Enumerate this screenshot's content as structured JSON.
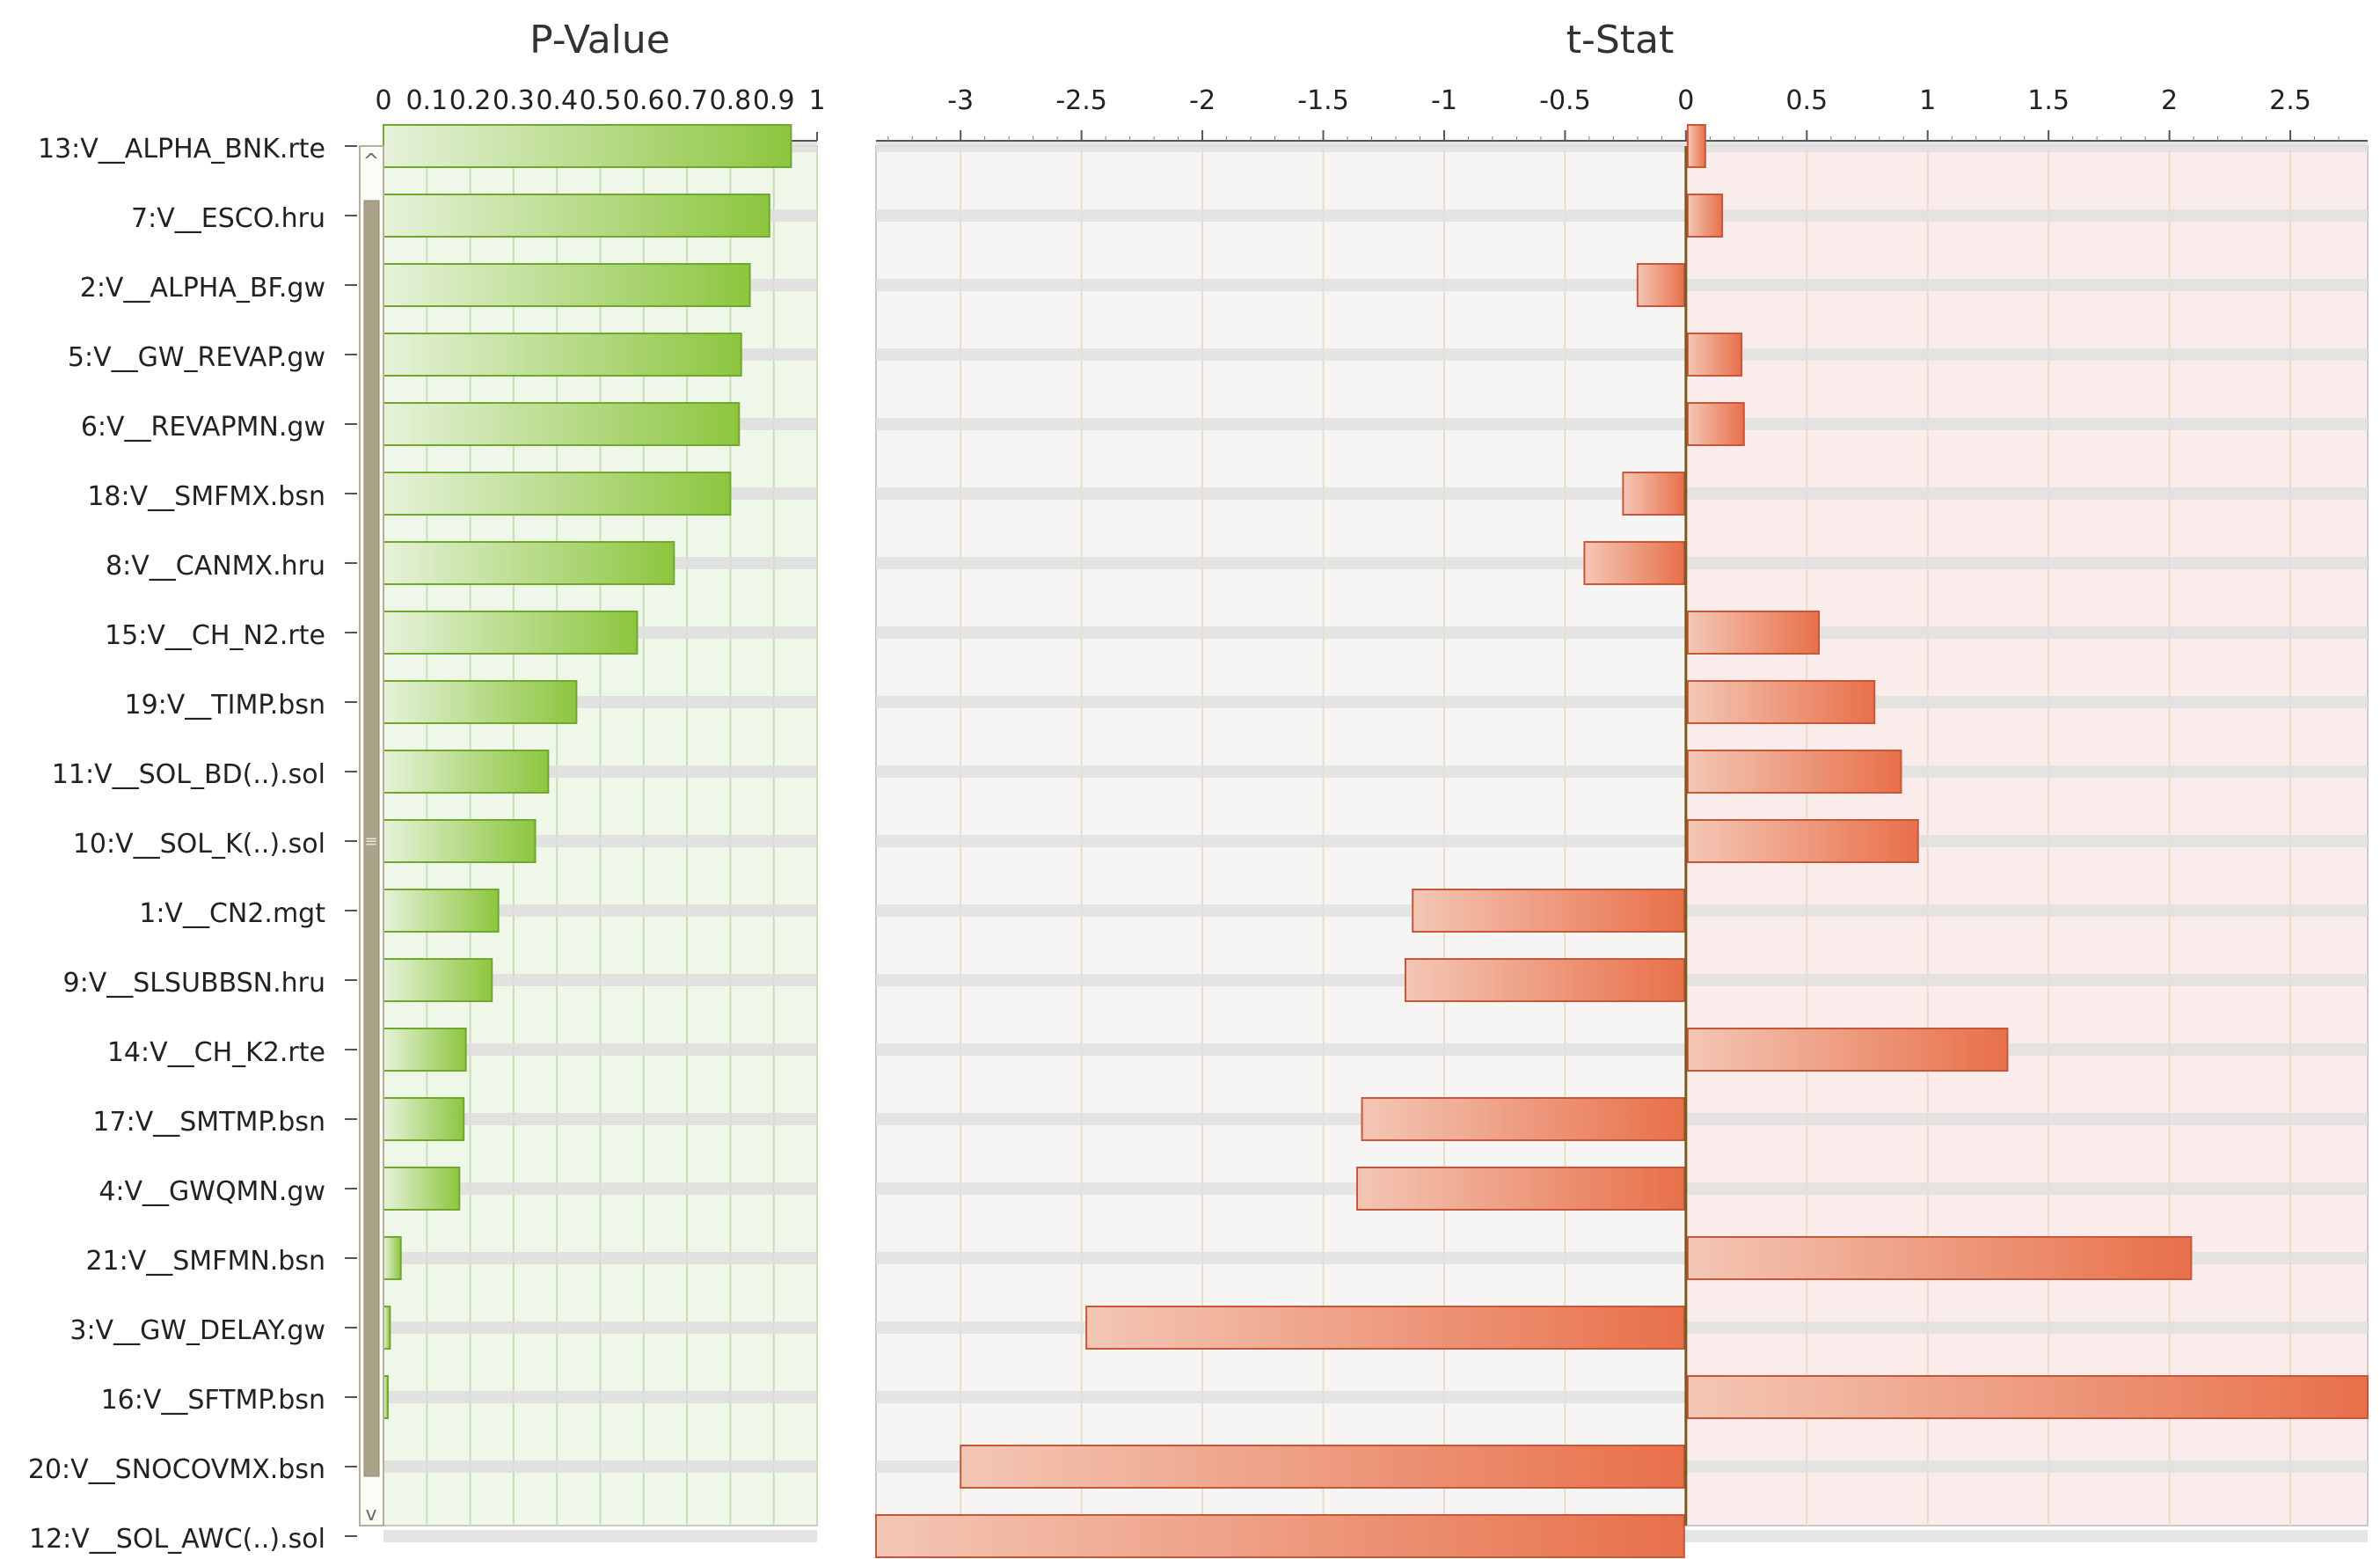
{
  "chart_data": [
    {
      "type": "bar",
      "orientation": "horizontal",
      "title": "P-Value",
      "xlim": [
        0,
        1
      ],
      "ticks": [
        0,
        0.1,
        0.2,
        0.3,
        0.4,
        0.5,
        0.6,
        0.7,
        0.8,
        0.9,
        1
      ],
      "tick_labels": [
        "0",
        "0.1",
        "0.2",
        "0.3",
        "0.4",
        "0.5",
        "0.6",
        "0.7",
        "0.8",
        "0.9",
        "1"
      ],
      "categories": [
        "13:V__ALPHA_BNK.rte",
        "7:V__ESCO.hru",
        "2:V__ALPHA_BF.gw",
        "5:V__GW_REVAP.gw",
        "6:V__REVAPMN.gw",
        "18:V__SMFMX.bsn",
        "8:V__CANMX.hru",
        "15:V__CH_N2.rte",
        "19:V__TIMP.bsn",
        "11:V__SOL_BD(..).sol",
        "10:V__SOL_K(..).sol",
        "1:V__CN2.mgt",
        "9:V__SLSUBBSN.hru",
        "14:V__CH_K2.rte",
        "17:V__SMTMP.bsn",
        "4:V__GWQMN.gw",
        "21:V__SMFMN.bsn",
        "3:V__GW_DELAY.gw",
        "16:V__SFTMP.bsn",
        "20:V__SNOCOVMX.bsn",
        "12:V__SOL_AWC(..).sol"
      ],
      "values": [
        0.94,
        0.89,
        0.845,
        0.825,
        0.82,
        0.8,
        0.67,
        0.585,
        0.445,
        0.38,
        0.35,
        0.265,
        0.25,
        0.19,
        0.185,
        0.175,
        0.04,
        0.015,
        0.01,
        0.0,
        0.0
      ],
      "colors": {
        "bar": "#8dc63f",
        "bar_light": "#e6f2da",
        "background": "#eef7e8",
        "grid": "#c6deb5"
      }
    },
    {
      "type": "bar",
      "orientation": "horizontal",
      "title": "t-Stat",
      "xlim": [
        -3.35,
        2.82
      ],
      "ticks": [
        -3,
        -2.5,
        -2,
        -1.5,
        -1,
        -0.5,
        0,
        0.5,
        1,
        1.5,
        2,
        2.5
      ],
      "tick_labels": [
        "-3",
        "-2.5",
        "-2",
        "-1.5",
        "-1",
        "-0.5",
        "0",
        "0.5",
        "1",
        "1.5",
        "2",
        "2.5"
      ],
      "categories": [
        "13:V__ALPHA_BNK.rte",
        "7:V__ESCO.hru",
        "2:V__ALPHA_BF.gw",
        "5:V__GW_REVAP.gw",
        "6:V__REVAPMN.gw",
        "18:V__SMFMX.bsn",
        "8:V__CANMX.hru",
        "15:V__CH_N2.rte",
        "19:V__TIMP.bsn",
        "11:V__SOL_BD(..).sol",
        "10:V__SOL_K(..).sol",
        "1:V__CN2.mgt",
        "9:V__SLSUBBSN.hru",
        "14:V__CH_K2.rte",
        "17:V__SMTMP.bsn",
        "4:V__GWQMN.gw",
        "21:V__SMFMN.bsn",
        "3:V__GW_DELAY.gw",
        "16:V__SFTMP.bsn",
        "20:V__SNOCOVMX.bsn",
        "12:V__SOL_AWC(..).sol"
      ],
      "values": [
        0.08,
        0.15,
        -0.2,
        0.23,
        0.24,
        -0.26,
        -0.42,
        0.55,
        0.78,
        0.89,
        0.96,
        -1.13,
        -1.16,
        1.33,
        -1.34,
        -1.36,
        2.09,
        -2.48,
        2.83,
        -3.0,
        -3.35
      ],
      "colors": {
        "bar": "#e8704a",
        "bar_light": "#f3c7b5",
        "background_neg": "#f7f5f3",
        "background_pos": "#fbecec",
        "grid": "#e8dcc4",
        "zero_line": "#7a5a1e"
      }
    }
  ]
}
